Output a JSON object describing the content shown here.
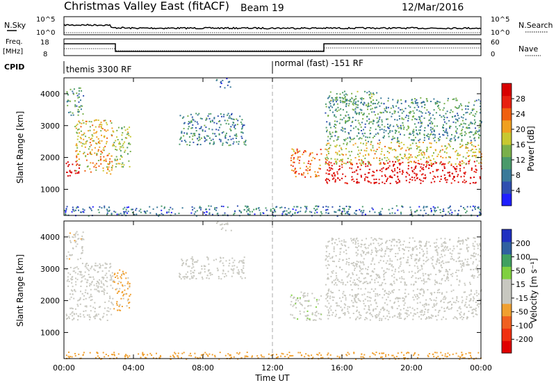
{
  "header": {
    "title": "Christmas Valley East (fitACF)",
    "beam": "Beam 19",
    "date": "12/Mar/2016"
  },
  "nsky_panel": {
    "left_label": "N.Sky",
    "left_ticks": [
      "10^5",
      "10^0"
    ],
    "right_label": "N.Search",
    "right_ticks": [
      "10^5",
      "10^0"
    ]
  },
  "freq_panel": {
    "left_label_1": "Freq.",
    "left_label_2": "[MHz]",
    "left_ticks": [
      "18",
      "8"
    ],
    "right_label": "Nave",
    "right_ticks": [
      "60",
      "0"
    ]
  },
  "cpid": {
    "label": "CPID",
    "segments": [
      {
        "text": "themis 3300 RF",
        "start_hour": 0
      },
      {
        "text": "normal (fast) -151 RF",
        "start_hour": 12
      }
    ]
  },
  "chart_data": [
    {
      "type": "heatmap",
      "name": "power",
      "ylabel": "Slant Range [km]",
      "yticks": [
        1000,
        2000,
        3000,
        4000
      ],
      "ylim": [
        180,
        4500
      ],
      "xlim": [
        0,
        24
      ],
      "colorbar": {
        "label": "Power [dB]",
        "ticks": [
          "4",
          "8",
          "12",
          "16",
          "20",
          "24",
          "28"
        ],
        "range": [
          0,
          30
        ],
        "colors": [
          "#1f1fff",
          "#2f4fb0",
          "#3a7a9a",
          "#4a9a6a",
          "#7ab04a",
          "#c8c830",
          "#f0a020",
          "#f06010",
          "#e82010",
          "#d80000"
        ]
      },
      "bands": [
        {
          "t": [
            0.1,
            1.0
          ],
          "r": [
            1400,
            1900
          ],
          "value": 29
        },
        {
          "t": [
            0.6,
            2.8
          ],
          "r": [
            1500,
            3200
          ],
          "value": 18
        },
        {
          "t": [
            0.1,
            1.1
          ],
          "r": [
            3300,
            4200
          ],
          "value": 10
        },
        {
          "t": [
            2.8,
            3.8
          ],
          "r": [
            1700,
            3000
          ],
          "value": 14
        },
        {
          "t": [
            6.6,
            10.5
          ],
          "r": [
            2400,
            3400
          ],
          "value": 8
        },
        {
          "t": [
            8.7,
            9.6
          ],
          "r": [
            4200,
            4500
          ],
          "value": 6
        },
        {
          "t": [
            13.0,
            14.8
          ],
          "r": [
            1400,
            2300
          ],
          "value": 22
        },
        {
          "t": [
            15.0,
            24.0
          ],
          "r": [
            1200,
            1900
          ],
          "value": 29
        },
        {
          "t": [
            15.0,
            24.0
          ],
          "r": [
            1800,
            2500
          ],
          "value": 17
        },
        {
          "t": [
            15.0,
            24.0
          ],
          "r": [
            2500,
            3900
          ],
          "value": 10
        },
        {
          "t": [
            15.2,
            18.0
          ],
          "r": [
            3500,
            4100
          ],
          "value": 11
        },
        {
          "t": [
            0.0,
            24.0
          ],
          "r": [
            180,
            500
          ],
          "value": 7
        }
      ]
    },
    {
      "type": "heatmap",
      "name": "velocity",
      "ylabel": "Slant Range [km]",
      "yticks": [
        1000,
        2000,
        3000,
        4000
      ],
      "ylim": [
        180,
        4500
      ],
      "xlim": [
        0,
        24
      ],
      "xticks": [
        "00:00",
        "04:00",
        "08:00",
        "12:00",
        "16:00",
        "20:00",
        "00:00"
      ],
      "xlabel": "Time UT",
      "colorbar": {
        "label": "Velocity [m s⁻¹]",
        "ticks": [
          "200",
          "100",
          "50",
          "15",
          "-15",
          "-50",
          "-100",
          "-200"
        ],
        "range": [
          -250,
          250
        ],
        "colors": [
          "#e00000",
          "#f03010",
          "#f06020",
          "#f0a030",
          "#c8c8c0",
          "#c8c8c0",
          "#80d040",
          "#40a060",
          "#3060a0",
          "#2030c0"
        ]
      },
      "bands": [
        {
          "t": [
            0.1,
            2.8
          ],
          "r": [
            1400,
            3200
          ],
          "value": 0
        },
        {
          "t": [
            2.8,
            3.8
          ],
          "r": [
            1700,
            3000
          ],
          "value": -60
        },
        {
          "t": [
            0.1,
            1.1
          ],
          "r": [
            3300,
            4200
          ],
          "value": -40
        },
        {
          "t": [
            6.6,
            10.5
          ],
          "r": [
            2700,
            3400
          ],
          "value": 0
        },
        {
          "t": [
            8.7,
            9.6
          ],
          "r": [
            4200,
            4500
          ],
          "value": 0
        },
        {
          "t": [
            13.0,
            14.8
          ],
          "r": [
            1400,
            2300
          ],
          "value": 40
        },
        {
          "t": [
            15.0,
            24.0
          ],
          "r": [
            1400,
            2400
          ],
          "value": 0
        },
        {
          "t": [
            15.0,
            24.0
          ],
          "r": [
            2500,
            4000
          ],
          "value": 0
        },
        {
          "t": [
            0.0,
            24.0
          ],
          "r": [
            180,
            400
          ],
          "value": -80
        }
      ]
    }
  ]
}
